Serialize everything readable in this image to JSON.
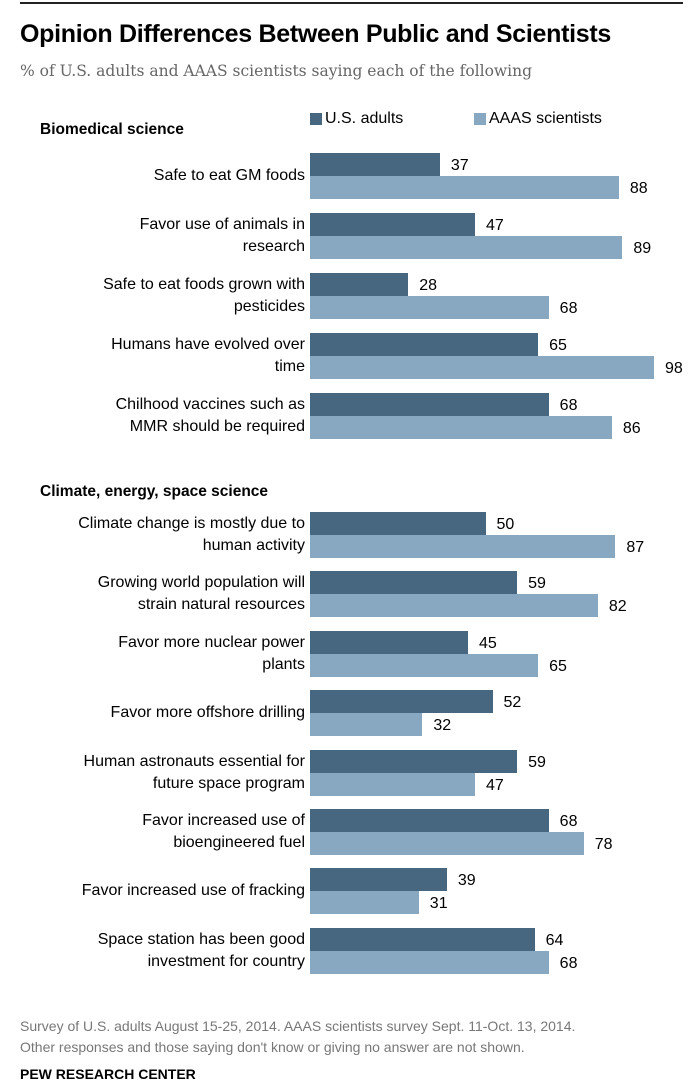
{
  "chart_data": {
    "type": "bar",
    "orientation": "horizontal",
    "title": "Opinion Differences Between Public and Scientists",
    "subtitle": "% of U.S. adults and AAAS scientists saying each of the following",
    "legend": [
      "U.S. adults",
      "AAAS scientists"
    ],
    "legend_placement": "top",
    "colors": {
      "U.S. adults": "#46677f",
      "AAAS scientists": "#87a8c0"
    },
    "xlim": [
      0,
      100
    ],
    "grid": false,
    "groups": [
      {
        "name": "Biomedical science",
        "categories": [
          "Safe to eat GM foods",
          "Favor use of animals in research",
          "Safe to eat foods grown with pesticides",
          "Humans have evolved over time",
          "Chilhood vaccines such as MMR should be required"
        ],
        "label_lines": [
          [
            "Safe to eat GM foods"
          ],
          [
            "Favor use of animals in",
            "research"
          ],
          [
            "Safe to eat foods grown with",
            "pesticides"
          ],
          [
            "Humans have evolved over",
            "time"
          ],
          [
            "Chilhood vaccines such as",
            "MMR should be required"
          ]
        ],
        "series": [
          {
            "name": "U.S. adults",
            "values": [
              37,
              47,
              28,
              65,
              68
            ]
          },
          {
            "name": "AAAS scientists",
            "values": [
              88,
              89,
              68,
              98,
              86
            ]
          }
        ]
      },
      {
        "name": "Climate, energy, space science",
        "categories": [
          "Climate change is mostly due to human activity",
          "Growing world population will strain natural resources",
          "Favor more nuclear power plants",
          "Favor more offshore drilling",
          "Human astronauts essential for future space program",
          "Favor increased use of bioengineered fuel",
          "Favor increased use of fracking",
          "Space station has been good investment for country"
        ],
        "label_lines": [
          [
            "Climate change is mostly due to",
            "human activity"
          ],
          [
            "Growing world population will",
            "strain natural resources"
          ],
          [
            "Favor more nuclear power",
            "plants"
          ],
          [
            "Favor more offshore drilling"
          ],
          [
            "Human astronauts essential for",
            "future space program"
          ],
          [
            "Favor increased use of",
            "bioengineered fuel"
          ],
          [
            "Favor increased use of fracking"
          ],
          [
            "Space station has been good",
            "investment for country"
          ]
        ],
        "series": [
          {
            "name": "U.S. adults",
            "values": [
              50,
              59,
              45,
              52,
              59,
              68,
              39,
              64
            ]
          },
          {
            "name": "AAAS scientists",
            "values": [
              87,
              82,
              65,
              32,
              47,
              78,
              31,
              68
            ]
          }
        ]
      }
    ]
  },
  "notes": [
    "Survey of U.S. adults August 15-25, 2014. AAAS scientists survey Sept. 11-Oct. 13, 2014.",
    "Other responses and those saying don't know or giving no answer are not shown."
  ],
  "source": "PEW RESEARCH CENTER"
}
